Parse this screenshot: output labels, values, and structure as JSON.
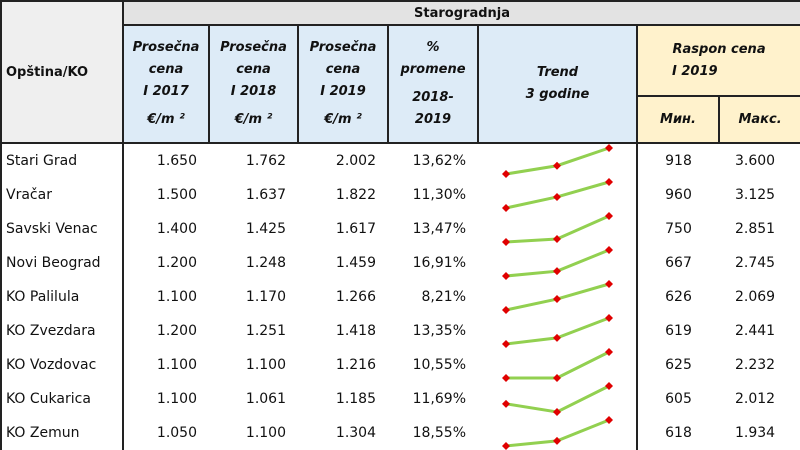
{
  "header": {
    "group": "Starogradnja",
    "col_name": "Opština/KO",
    "c2017": [
      "Prosečna",
      "cena",
      "I 2017",
      "€/m ²"
    ],
    "c2018": [
      "Prosečna",
      "cena",
      "I 2018",
      "€/m ²"
    ],
    "c2019": [
      "Prosečna",
      "cena",
      "I 2019",
      "€/m ²"
    ],
    "pct": [
      "%",
      "promene",
      "2018-",
      "2019"
    ],
    "trend": [
      "Trend",
      "3 godine"
    ],
    "range": [
      "Raspon cena",
      "I 2019"
    ],
    "min": "Мин.",
    "max": "Макс."
  },
  "colors": {
    "line": "#92d050",
    "marker": "#e00000",
    "header_blue": "#ddebf7",
    "header_yellow": "#fff2cc"
  },
  "rows": [
    {
      "name": "Stari Grad",
      "p2017": "1.650",
      "p2018": "1.762",
      "p2019": "2.002",
      "pct": "13,62%",
      "min": "918",
      "max": "3.600",
      "trend": [
        1650,
        1762,
        2002
      ]
    },
    {
      "name": "Vračar",
      "p2017": "1.500",
      "p2018": "1.637",
      "p2019": "1.822",
      "pct": "11,30%",
      "min": "960",
      "max": "3.125",
      "trend": [
        1500,
        1637,
        1822
      ]
    },
    {
      "name": "Savski Venac",
      "p2017": "1.400",
      "p2018": "1.425",
      "p2019": "1.617",
      "pct": "13,47%",
      "min": "750",
      "max": "2.851",
      "trend": [
        1400,
        1425,
        1617
      ]
    },
    {
      "name": "Novi Beograd",
      "p2017": "1.200",
      "p2018": "1.248",
      "p2019": "1.459",
      "pct": "16,91%",
      "min": "667",
      "max": "2.745",
      "trend": [
        1200,
        1248,
        1459
      ]
    },
    {
      "name": "KO Palilula",
      "p2017": "1.100",
      "p2018": "1.170",
      "p2019": "1.266",
      "pct": "8,21%",
      "min": "626",
      "max": "2.069",
      "trend": [
        1100,
        1170,
        1266
      ]
    },
    {
      "name": "KO Zvezdara",
      "p2017": "1.200",
      "p2018": "1.251",
      "p2019": "1.418",
      "pct": "13,35%",
      "min": "619",
      "max": "2.441",
      "trend": [
        1200,
        1251,
        1418
      ]
    },
    {
      "name": "KO Vozdovac",
      "p2017": "1.100",
      "p2018": "1.100",
      "p2019": "1.216",
      "pct": "10,55%",
      "min": "625",
      "max": "2.232",
      "trend": [
        1100,
        1100,
        1216
      ]
    },
    {
      "name": "KO Cukarica",
      "p2017": "1.100",
      "p2018": "1.061",
      "p2019": "1.185",
      "pct": "11,69%",
      "min": "605",
      "max": "2.012",
      "trend": [
        1100,
        1061,
        1185
      ]
    },
    {
      "name": "KO Zemun",
      "p2017": "1.050",
      "p2018": "1.100",
      "p2019": "1.304",
      "pct": "18,55%",
      "min": "618",
      "max": "1.934",
      "trend": [
        1050,
        1100,
        1304
      ]
    }
  ]
}
